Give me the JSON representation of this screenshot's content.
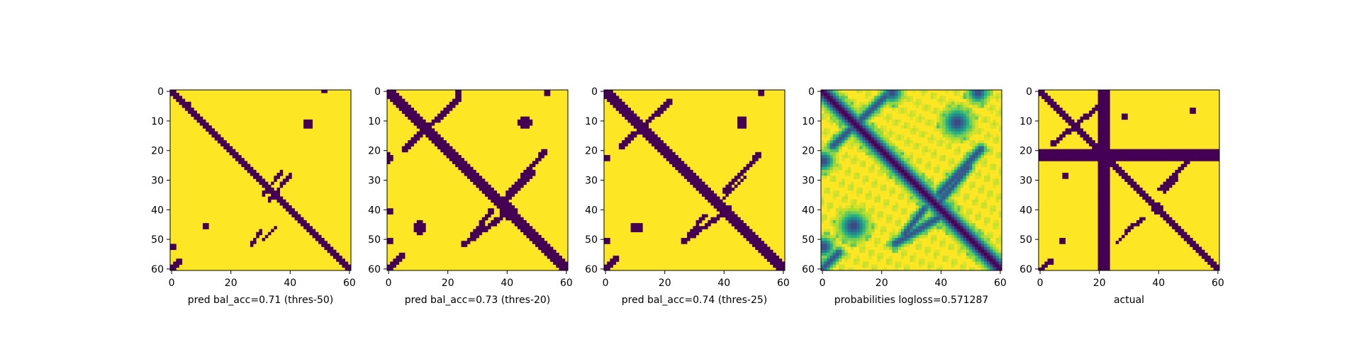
{
  "chart_data": [
    {
      "type": "heatmap",
      "title": "pred bal_acc=0.71 (thres-50)",
      "colormap": "viridis-binary",
      "xlim": [
        0,
        61
      ],
      "ylim": [
        61,
        0
      ],
      "x_ticks": [
        "0",
        "20",
        "40",
        "60"
      ],
      "y_ticks": [
        "0",
        "10",
        "20",
        "30",
        "40",
        "50",
        "60"
      ],
      "structure": {
        "main_diagonal": {
          "from": [
            0,
            0
          ],
          "to": [
            61,
            61
          ],
          "half_width": 1.3
        },
        "anti_diagonal_segments": [
          {
            "from": [
              38,
              27
            ],
            "to": [
              31,
              36
            ],
            "half_width": 0.6
          },
          {
            "from": [
              41,
              28
            ],
            "to": [
              33,
              38
            ],
            "half_width": 0.6
          },
          {
            "from": [
              31,
              47
            ],
            "to": [
              27,
              53
            ],
            "half_width": 0.6
          },
          {
            "from": [
              36,
              46
            ],
            "to": [
              31,
              51
            ],
            "half_width": 0.6
          },
          {
            "from": [
              3,
              58
            ],
            "to": [
              0,
              61
            ],
            "half_width": 0.8
          }
        ],
        "blobs": [
          {
            "x": 12,
            "y": 46,
            "r": 1.4
          },
          {
            "x": 46.5,
            "y": 11.5,
            "r": 1.6
          },
          {
            "x": 0.5,
            "y": 53,
            "r": 1.2
          },
          {
            "x": 52,
            "y": 0.5,
            "r": 1.0
          },
          {
            "x": 6,
            "y": 5,
            "r": 0.9
          },
          {
            "x": 14,
            "y": 6,
            "r": 0.7
          }
        ]
      }
    },
    {
      "type": "heatmap",
      "title": "pred bal_acc=0.73 (thres-20)",
      "colormap": "viridis-binary",
      "xlim": [
        0,
        61
      ],
      "ylim": [
        61,
        0
      ],
      "x_ticks": [
        "0",
        "20",
        "40",
        "60"
      ],
      "y_ticks": [
        "0",
        "10",
        "20",
        "30",
        "40",
        "50",
        "60"
      ],
      "structure": {
        "main_diagonal": {
          "from": [
            0,
            0
          ],
          "to": [
            61,
            61
          ],
          "half_width": 1.7
        },
        "anti_diagonal_segments": [
          {
            "from": [
              24,
              3
            ],
            "to": [
              6,
              20
            ],
            "half_width": 1.0
          },
          {
            "from": [
              53,
              21
            ],
            "to": [
              41,
              35
            ],
            "half_width": 0.9
          },
          {
            "from": [
              49,
              28
            ],
            "to": [
              40,
              37
            ],
            "half_width": 0.8
          },
          {
            "from": [
              40,
              42
            ],
            "to": [
              26,
              52
            ],
            "half_width": 0.9
          },
          {
            "from": [
              35,
              41
            ],
            "to": [
              29,
              49
            ],
            "half_width": 0.8
          },
          {
            "from": [
              5,
              56
            ],
            "to": [
              0,
              61
            ],
            "half_width": 1.0
          }
        ],
        "blobs": [
          {
            "x": 46.5,
            "y": 11,
            "r": 2.2
          },
          {
            "x": 11,
            "y": 46.5,
            "r": 2.2
          },
          {
            "x": 0.8,
            "y": 23,
            "r": 1.6
          },
          {
            "x": 24,
            "y": 1,
            "r": 1.5
          },
          {
            "x": 54,
            "y": 1,
            "r": 1.3
          },
          {
            "x": 1,
            "y": 51,
            "r": 1.4
          },
          {
            "x": 1,
            "y": 41,
            "r": 0.9
          },
          {
            "x": 41,
            "y": 41,
            "r": 2.6
          }
        ]
      }
    },
    {
      "type": "heatmap",
      "title": "pred bal_acc=0.74 (thres-25)",
      "colormap": "viridis-binary",
      "xlim": [
        0,
        61
      ],
      "ylim": [
        61,
        0
      ],
      "x_ticks": [
        "0",
        "20",
        "40",
        "60"
      ],
      "y_ticks": [
        "0",
        "10",
        "20",
        "30",
        "40",
        "50",
        "60"
      ],
      "structure": {
        "main_diagonal": {
          "from": [
            0,
            0
          ],
          "to": [
            61,
            61
          ],
          "half_width": 1.6
        },
        "anti_diagonal_segments": [
          {
            "from": [
              22,
              4
            ],
            "to": [
              6,
              19
            ],
            "half_width": 0.9
          },
          {
            "from": [
              52,
              22
            ],
            "to": [
              41,
              34
            ],
            "half_width": 0.8
          },
          {
            "from": [
              48,
              29
            ],
            "to": [
              40,
              37
            ],
            "half_width": 0.7
          },
          {
            "from": [
              40,
              42
            ],
            "to": [
              27,
              51
            ],
            "half_width": 0.8
          },
          {
            "from": [
              34,
              42
            ],
            "to": [
              29,
              49
            ],
            "half_width": 0.7
          },
          {
            "from": [
              4,
              57
            ],
            "to": [
              0,
              61
            ],
            "half_width": 0.9
          }
        ],
        "blobs": [
          {
            "x": 46.5,
            "y": 11,
            "r": 2.0
          },
          {
            "x": 11,
            "y": 46.5,
            "r": 2.0
          },
          {
            "x": 0.6,
            "y": 23,
            "r": 1.3
          },
          {
            "x": 53,
            "y": 1,
            "r": 1.2
          },
          {
            "x": 1,
            "y": 51,
            "r": 1.2
          },
          {
            "x": 41,
            "y": 41,
            "r": 2.3
          }
        ]
      }
    },
    {
      "type": "heatmap",
      "title": "probabilities logloss=0.571287",
      "colormap": "viridis",
      "xlim": [
        0,
        61
      ],
      "ylim": [
        61,
        0
      ],
      "x_ticks": [
        "0",
        "20",
        "40",
        "60"
      ],
      "y_ticks": [
        "0",
        "10",
        "20",
        "30",
        "40",
        "50",
        "60"
      ],
      "structure": {
        "main_diagonal": {
          "from": [
            0,
            0
          ],
          "to": [
            61,
            61
          ],
          "half_width": 2.2
        },
        "anti_diagonal_segments": [
          {
            "from": [
              22,
              2
            ],
            "to": [
              4,
              19
            ],
            "half_width": 1.4
          },
          {
            "from": [
              54,
              20
            ],
            "to": [
              40,
              35
            ],
            "half_width": 1.4
          },
          {
            "from": [
              50,
              26
            ],
            "to": [
              40,
              38
            ],
            "half_width": 1.2
          },
          {
            "from": [
              40,
              43
            ],
            "to": [
              25,
              52
            ],
            "half_width": 1.4
          },
          {
            "from": [
              35,
              40
            ],
            "to": [
              28,
              49
            ],
            "half_width": 1.2
          },
          {
            "from": [
              6,
              55
            ],
            "to": [
              0,
              61
            ],
            "half_width": 1.4
          }
        ],
        "blobs": [
          {
            "x": 46,
            "y": 11,
            "r": 3.5
          },
          {
            "x": 11,
            "y": 46,
            "r": 3.5
          },
          {
            "x": 53,
            "y": 1,
            "r": 2.5
          },
          {
            "x": 1,
            "y": 53,
            "r": 2.5
          },
          {
            "x": 1,
            "y": 24,
            "r": 2.5
          },
          {
            "x": 24,
            "y": 1,
            "r": 2.5
          },
          {
            "x": 41,
            "y": 41,
            "r": 3.0
          }
        ]
      }
    },
    {
      "type": "heatmap",
      "title": "actual",
      "colormap": "viridis-binary",
      "xlim": [
        0,
        61
      ],
      "ylim": [
        61,
        0
      ],
      "x_ticks": [
        "0",
        "20",
        "40",
        "60"
      ],
      "y_ticks": [
        "0",
        "10",
        "20",
        "30",
        "40",
        "50",
        "60"
      ],
      "structure": {
        "main_diagonal": {
          "from": [
            0,
            0
          ],
          "to": [
            61,
            61
          ],
          "half_width": 1.4
        },
        "anti_diagonal_segments": [
          {
            "from": [
              21,
              5
            ],
            "to": [
              5,
              18
            ],
            "half_width": 0.8
          },
          {
            "from": [
              52,
              23
            ],
            "to": [
              40,
              34
            ],
            "half_width": 0.7
          },
          {
            "from": [
              47,
              29
            ],
            "to": [
              42,
              35
            ],
            "half_width": 0.6
          },
          {
            "from": [
              36,
              43
            ],
            "to": [
              29,
              48
            ],
            "half_width": 0.6
          },
          {
            "from": [
              32,
              46
            ],
            "to": [
              26,
              52
            ],
            "half_width": 0.6
          },
          {
            "from": [
              4,
              58
            ],
            "to": [
              0,
              61
            ],
            "half_width": 0.8
          }
        ],
        "blobs": [
          {
            "x": 52,
            "y": 7,
            "r": 1.2
          },
          {
            "x": 8,
            "y": 51,
            "r": 1.0
          },
          {
            "x": 9,
            "y": 29,
            "r": 1.1
          },
          {
            "x": 29,
            "y": 9,
            "r": 1.0
          },
          {
            "x": 40,
            "y": 40,
            "r": 1.6
          }
        ],
        "bands": [
          {
            "orientation": "vertical",
            "center": 22,
            "half_width": 1.6,
            "from": 0,
            "to": 61
          },
          {
            "orientation": "horizontal",
            "center": 22,
            "half_width": 1.6,
            "from": 0,
            "to": 61
          }
        ]
      }
    }
  ]
}
